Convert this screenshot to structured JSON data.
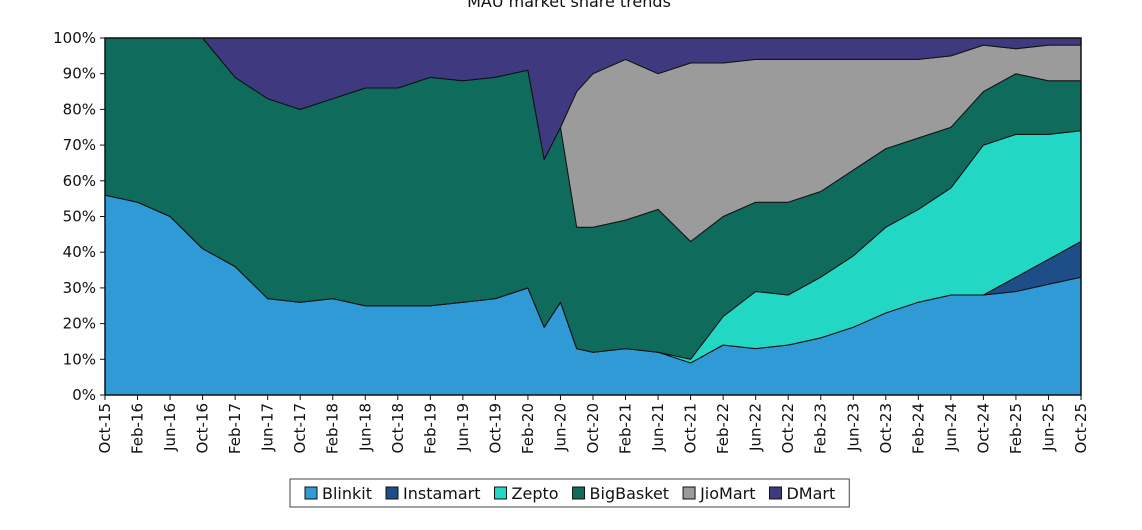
{
  "chart_data": {
    "type": "area",
    "stacked": true,
    "title": "MAU market share trends",
    "xlabel": "",
    "ylabel": "",
    "ylim": [
      0,
      100
    ],
    "y_ticks": [
      "0%",
      "10%",
      "20%",
      "30%",
      "40%",
      "50%",
      "60%",
      "70%",
      "80%",
      "90%",
      "100%"
    ],
    "x_tick_labels": [
      "Oct-15",
      "Feb-16",
      "Jun-16",
      "Oct-16",
      "Feb-17",
      "Jun-17",
      "Oct-17",
      "Feb-18",
      "Jun-18",
      "Oct-18",
      "Feb-19",
      "Jun-19",
      "Oct-19",
      "Feb-20",
      "Jun-20",
      "Oct-20",
      "Feb-21",
      "Jun-21",
      "Oct-21",
      "Feb-22",
      "Jun-22",
      "Oct-22",
      "Feb-23",
      "Jun-23",
      "Oct-23",
      "Feb-24",
      "Jun-24",
      "Oct-24",
      "Feb-25",
      "Jun-25",
      "Oct-25"
    ],
    "x": [
      "Oct-15",
      "Feb-16",
      "Jun-16",
      "Oct-16",
      "Feb-17",
      "Jun-17",
      "Oct-17",
      "Feb-18",
      "Jun-18",
      "Oct-18",
      "Feb-19",
      "Jun-19",
      "Oct-19",
      "Feb-20",
      "Apr-20",
      "Jun-20",
      "Aug-20",
      "Oct-20",
      "Feb-21",
      "Jun-21",
      "Oct-21",
      "Feb-22",
      "Jun-22",
      "Oct-22",
      "Feb-23",
      "Jun-23",
      "Oct-23",
      "Feb-24",
      "Jun-24",
      "Oct-24",
      "Feb-25",
      "Jun-25",
      "Oct-25"
    ],
    "legend": "bottom",
    "grid": false,
    "series": [
      {
        "name": "Blinkit",
        "color": "#2f9ad6",
        "values": [
          56,
          54,
          50,
          41,
          36,
          27,
          26,
          27,
          25,
          25,
          25,
          26,
          27,
          30,
          19,
          26,
          13,
          12,
          13,
          12,
          9,
          14,
          13,
          14,
          16,
          19,
          23,
          26,
          28,
          28,
          29,
          31,
          33
        ]
      },
      {
        "name": "Instamart",
        "color": "#1e4e88",
        "values": [
          0,
          0,
          0,
          0,
          0,
          0,
          0,
          0,
          0,
          0,
          0,
          0,
          0,
          0,
          0,
          0,
          0,
          0,
          0,
          0,
          0,
          0,
          0,
          0,
          0,
          0,
          0,
          0,
          0,
          0,
          4,
          7,
          10
        ]
      },
      {
        "name": "Zepto",
        "color": "#22d8c4",
        "values": [
          0,
          0,
          0,
          0,
          0,
          0,
          0,
          0,
          0,
          0,
          0,
          0,
          0,
          0,
          0,
          0,
          0,
          0,
          0,
          0,
          1,
          8,
          16,
          14,
          17,
          20,
          24,
          26,
          30,
          42,
          40,
          35,
          31
        ]
      },
      {
        "name": "BigBasket",
        "color": "#0f6b5c",
        "values": [
          44,
          46,
          50,
          59,
          53,
          56,
          54,
          56,
          61,
          61,
          64,
          62,
          62,
          61,
          47,
          49,
          34,
          35,
          36,
          40,
          33,
          28,
          25,
          26,
          24,
          24,
          22,
          20,
          17,
          15,
          17,
          15,
          14
        ]
      },
      {
        "name": "JioMart",
        "color": "#9b9b9b",
        "values": [
          0,
          0,
          0,
          0,
          0,
          0,
          0,
          0,
          0,
          0,
          0,
          0,
          0,
          0,
          0,
          0,
          38,
          43,
          45,
          38,
          50,
          43,
          40,
          40,
          37,
          31,
          25,
          22,
          20,
          13,
          7,
          10,
          10
        ]
      },
      {
        "name": "DMart",
        "color": "#3f3a7f",
        "values": [
          0,
          0,
          0,
          0,
          11,
          17,
          20,
          17,
          14,
          14,
          11,
          12,
          11,
          9,
          34,
          25,
          15,
          10,
          6,
          10,
          7,
          7,
          6,
          6,
          6,
          6,
          6,
          6,
          5,
          2,
          3,
          2,
          2
        ]
      }
    ]
  }
}
